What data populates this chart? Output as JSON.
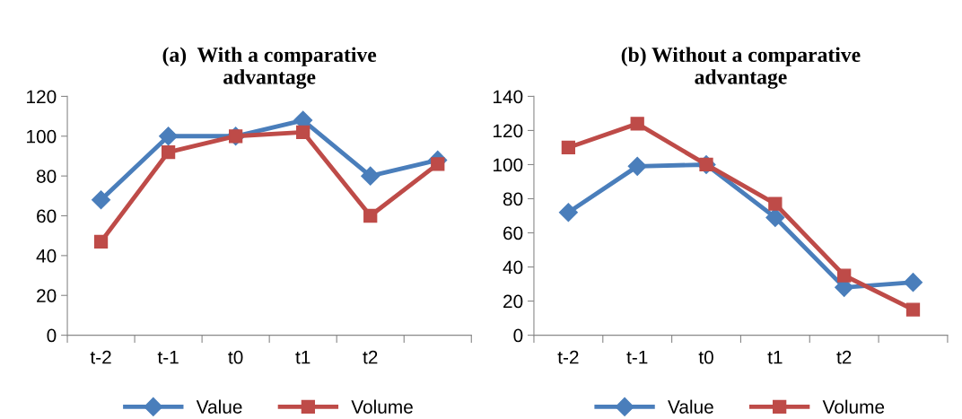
{
  "chart_data": [
    {
      "type": "line",
      "title": "(a)  With a comparative\nadvantage",
      "categories": [
        "t-2",
        "t-1",
        "t0",
        "t1",
        "t2",
        null
      ],
      "ylim": [
        0,
        120
      ],
      "yticks": [
        0,
        20,
        40,
        60,
        80,
        100,
        120
      ],
      "grid": false,
      "legend": "bottom",
      "line_style": "solid",
      "series": [
        {
          "name": "Value",
          "color": "#4a7ebb",
          "marker": "diamond",
          "values": [
            68,
            100,
            100,
            108,
            80,
            88
          ]
        },
        {
          "name": "Volume",
          "color": "#be4b48",
          "marker": "square",
          "values": [
            47,
            92,
            100,
            102,
            60,
            86
          ]
        }
      ]
    },
    {
      "type": "line",
      "title": "(b) Without a comparative\nadvantage",
      "categories": [
        "t-2",
        "t-1",
        "t0",
        "t1",
        "t2",
        null
      ],
      "ylim": [
        0,
        140
      ],
      "yticks": [
        0,
        20,
        40,
        60,
        80,
        100,
        120,
        140
      ],
      "grid": false,
      "legend": "bottom",
      "line_style": "solid",
      "series": [
        {
          "name": "Value",
          "color": "#4a7ebb",
          "marker": "diamond",
          "values": [
            72,
            99,
            100,
            69,
            28,
            31
          ]
        },
        {
          "name": "Volume",
          "color": "#be4b48",
          "marker": "square",
          "values": [
            110,
            124,
            100,
            77,
            35,
            15
          ]
        }
      ]
    }
  ]
}
